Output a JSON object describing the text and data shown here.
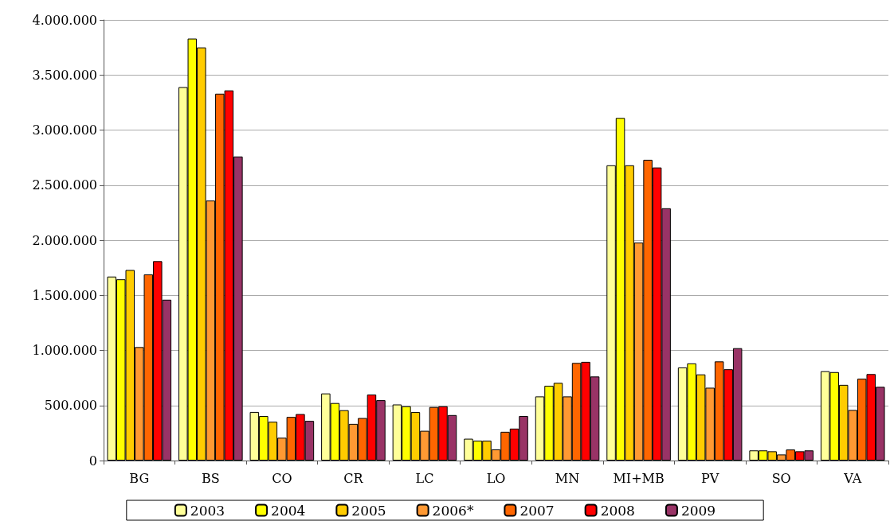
{
  "chart_data": {
    "type": "bar",
    "categories": [
      "BG",
      "BS",
      "CO",
      "CR",
      "LC",
      "LO",
      "MN",
      "MI+MB",
      "PV",
      "SO",
      "VA"
    ],
    "series": [
      {
        "name": "2003",
        "color": "#ffff99",
        "values": [
          1670000,
          3390000,
          441000,
          609000,
          509000,
          198000,
          582000,
          2680000,
          845000,
          92000,
          811000
        ]
      },
      {
        "name": "2004",
        "color": "#ffff00",
        "values": [
          1645000,
          3830000,
          404000,
          522000,
          493000,
          181000,
          679000,
          3110000,
          882000,
          92000,
          803000
        ]
      },
      {
        "name": "2005",
        "color": "#ffcc00",
        "values": [
          1730000,
          3750000,
          352000,
          457000,
          440000,
          181000,
          705000,
          2680000,
          782000,
          84000,
          687000
        ]
      },
      {
        "name": "2006*",
        "color": "#ff9933",
        "values": [
          1030000,
          2360000,
          207000,
          333000,
          270000,
          101000,
          582000,
          1980000,
          661000,
          55000,
          459000
        ]
      },
      {
        "name": "2007",
        "color": "#ff6600",
        "values": [
          1690000,
          3330000,
          396000,
          386000,
          486000,
          261000,
          886000,
          2730000,
          900000,
          100000,
          743000
        ]
      },
      {
        "name": "2008",
        "color": "#ff0000",
        "values": [
          1810000,
          3360000,
          422000,
          599000,
          493000,
          290000,
          896000,
          2660000,
          829000,
          84000,
          785000
        ]
      },
      {
        "name": "2009",
        "color": "#993366",
        "values": [
          1460000,
          2760000,
          360000,
          548000,
          413000,
          404000,
          763000,
          2290000,
          1020000,
          92000,
          669000
        ]
      }
    ],
    "ylim": [
      0,
      4000000
    ],
    "yticks": [
      0,
      {
        "value": 500000,
        "label": "500.000"
      },
      {
        "value": 1000000,
        "label": "1.000.000"
      },
      {
        "value": 1500000,
        "label": "1.500.000"
      },
      {
        "value": 2000000,
        "label": "2.000.000"
      },
      {
        "value": 2500000,
        "label": "2.500.000"
      },
      {
        "value": 3000000,
        "label": "3.000.000"
      },
      {
        "value": 3500000,
        "label": "3.500.000"
      },
      {
        "value": 4000000,
        "label": "4.000.000"
      }
    ],
    "grid": "y",
    "legend": "bottom"
  }
}
